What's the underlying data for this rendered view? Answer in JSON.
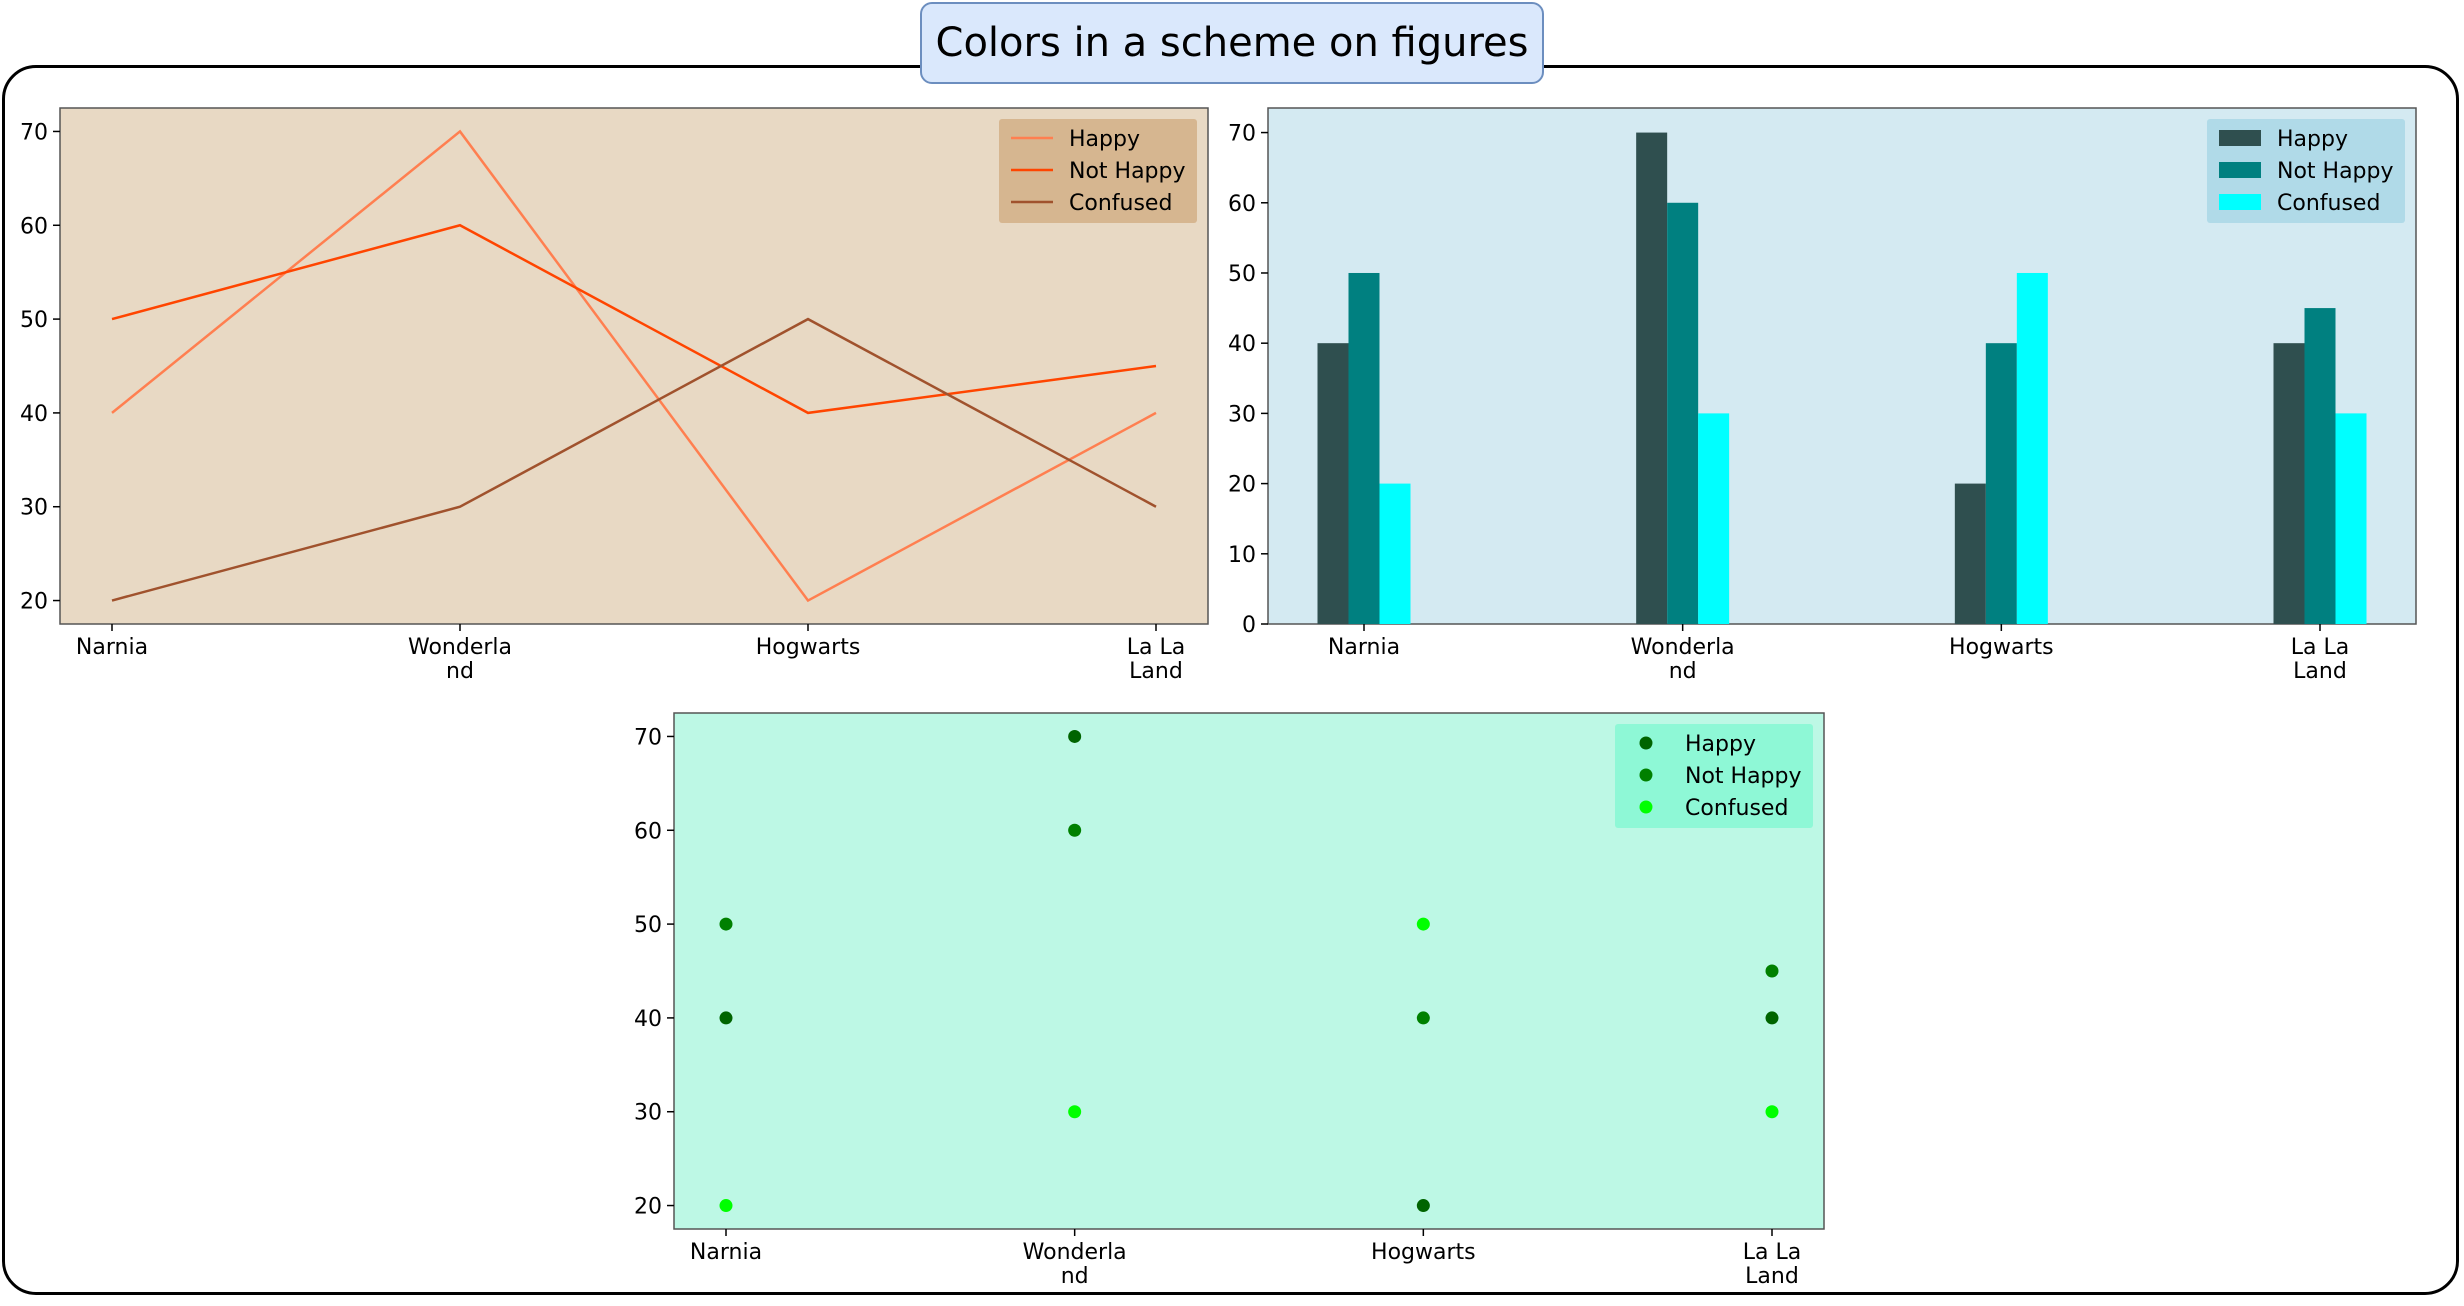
{
  "title": "Colors in a scheme on figures",
  "chart_data": [
    {
      "type": "line",
      "categories": [
        "Narnia",
        "Wonderland",
        "Hogwarts",
        "La La Land"
      ],
      "category_labels": [
        [
          "Narnia"
        ],
        [
          "Wonderla",
          "nd"
        ],
        [
          "Hogwarts"
        ],
        [
          "La La",
          "Land"
        ]
      ],
      "ylim": [
        17.5,
        72.5
      ],
      "yticks": [
        20,
        30,
        40,
        50,
        60,
        70
      ],
      "background": "#e8d9c4",
      "legend": {
        "position": "top-right",
        "background": "#d6b690"
      },
      "series": [
        {
          "name": "Happy",
          "color": "#ff7f50",
          "values": [
            40,
            70,
            20,
            40
          ]
        },
        {
          "name": "Not Happy",
          "color": "#ff4500",
          "values": [
            50,
            60,
            40,
            45
          ]
        },
        {
          "name": "Confused",
          "color": "#a0522d",
          "values": [
            20,
            30,
            50,
            30
          ]
        }
      ]
    },
    {
      "type": "bar",
      "categories": [
        "Narnia",
        "Wonderland",
        "Hogwarts",
        "La La Land"
      ],
      "category_labels": [
        [
          "Narnia"
        ],
        [
          "Wonderla",
          "nd"
        ],
        [
          "Hogwarts"
        ],
        [
          "La La",
          "Land"
        ]
      ],
      "ylim": [
        0,
        73.5
      ],
      "yticks": [
        0,
        10,
        20,
        30,
        40,
        50,
        60,
        70
      ],
      "background": "#d4eaf2",
      "legend": {
        "position": "top-right",
        "background": "#b0dae8"
      },
      "series": [
        {
          "name": "Happy",
          "color": "#2f4f4f",
          "values": [
            40,
            70,
            20,
            40
          ]
        },
        {
          "name": "Not Happy",
          "color": "#008080",
          "values": [
            50,
            60,
            40,
            45
          ]
        },
        {
          "name": "Confused",
          "color": "#00ffff",
          "values": [
            20,
            30,
            50,
            30
          ]
        }
      ]
    },
    {
      "type": "scatter",
      "categories": [
        "Narnia",
        "Wonderland",
        "Hogwarts",
        "La La Land"
      ],
      "category_labels": [
        [
          "Narnia"
        ],
        [
          "Wonderla",
          "nd"
        ],
        [
          "Hogwarts"
        ],
        [
          "La La",
          "Land"
        ]
      ],
      "ylim": [
        17.5,
        72.5
      ],
      "yticks": [
        20,
        30,
        40,
        50,
        60,
        70
      ],
      "background": "#bdf8e5",
      "legend": {
        "position": "top-right",
        "background": "#8ef8d6"
      },
      "series": [
        {
          "name": "Happy",
          "color": "#006400",
          "values": [
            40,
            70,
            20,
            40
          ]
        },
        {
          "name": "Not Happy",
          "color": "#008000",
          "values": [
            50,
            60,
            40,
            45
          ]
        },
        {
          "name": "Confused",
          "color": "#00ff00",
          "values": [
            20,
            30,
            50,
            30
          ]
        }
      ]
    }
  ]
}
